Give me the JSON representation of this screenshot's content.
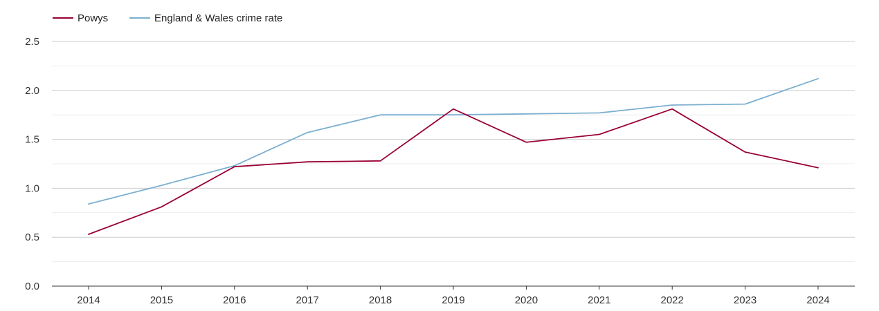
{
  "chart_data": {
    "type": "line",
    "categories": [
      "2014",
      "2015",
      "2016",
      "2017",
      "2018",
      "2019",
      "2020",
      "2021",
      "2022",
      "2023",
      "2024"
    ],
    "series": [
      {
        "name": "Powys",
        "color": "#990033",
        "values": [
          0.53,
          0.81,
          1.22,
          1.27,
          1.28,
          1.81,
          1.47,
          1.55,
          1.81,
          1.37,
          1.21
        ]
      },
      {
        "name": "England & Wales crime rate",
        "color": "#7aafd0",
        "values": [
          0.84,
          1.03,
          1.23,
          1.57,
          1.75,
          1.75,
          1.76,
          1.77,
          1.85,
          1.86,
          2.12
        ]
      }
    ],
    "ylim": [
      0,
      2.5
    ],
    "yticks": [
      "0.0",
      "0.5",
      "1.0",
      "1.5",
      "2.0",
      "2.5"
    ],
    "legend_position": "top-left",
    "grid": true
  }
}
